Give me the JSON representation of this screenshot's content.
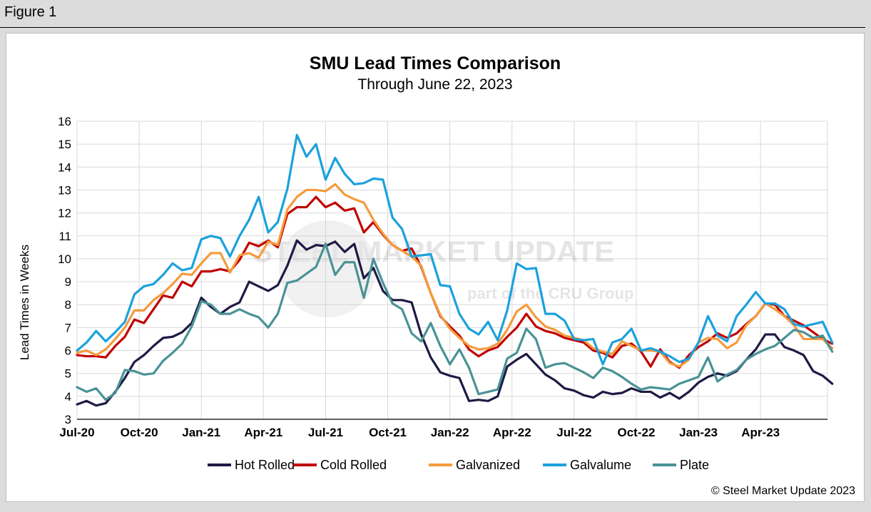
{
  "figure_label": "Figure 1",
  "watermark": {
    "main": "STEEL MARKET UPDATE",
    "sub": "part of the CRU Group"
  },
  "copyright": "© Steel Market Update 2023",
  "colors": {
    "hot_rolled": "#1e1a45",
    "cold_rolled": "#c00000",
    "galvanized": "#f59b3c",
    "galvalume": "#1ba1dc",
    "plate": "#4a9296",
    "grid": "#d9d9d9"
  },
  "chart_data": {
    "type": "line",
    "title": "SMU Lead Times Comparison",
    "subtitle": "Through June 22, 2023",
    "xlabel": "",
    "ylabel": "Lead Times in Weeks",
    "ylim": [
      3,
      16
    ],
    "yticks": [
      3,
      4,
      5,
      6,
      7,
      8,
      9,
      10,
      11,
      12,
      13,
      14,
      15,
      16
    ],
    "x_domain": [
      0,
      78.5
    ],
    "x_ticks": [
      {
        "label": "Jul-20",
        "pos": 0
      },
      {
        "label": "Oct-20",
        "pos": 6.5
      },
      {
        "label": "Jan-21",
        "pos": 13
      },
      {
        "label": "Apr-21",
        "pos": 19.5
      },
      {
        "label": "Jul-21",
        "pos": 26
      },
      {
        "label": "Oct-21",
        "pos": 32.5
      },
      {
        "label": "Jan-22",
        "pos": 39
      },
      {
        "label": "Apr-22",
        "pos": 45.5
      },
      {
        "label": "Jul-22",
        "pos": 52
      },
      {
        "label": "Oct-22",
        "pos": 58.5
      },
      {
        "label": "Jan-23",
        "pos": 65
      },
      {
        "label": "Apr-23",
        "pos": 71.5
      }
    ],
    "grid": true,
    "legend_position": "bottom",
    "series": [
      {
        "key": "hot_rolled",
        "name": "Hot Rolled",
        "values": [
          3.65,
          3.8,
          3.6,
          3.7,
          4.2,
          4.8,
          5.5,
          5.8,
          6.2,
          6.55,
          6.6,
          6.8,
          7.2,
          8.3,
          7.9,
          7.6,
          7.9,
          8.1,
          9.0,
          8.8,
          8.6,
          8.85,
          9.7,
          10.8,
          10.4,
          10.6,
          10.55,
          10.75,
          10.3,
          10.65,
          9.15,
          9.6,
          8.6,
          8.2,
          8.2,
          8.1,
          6.7,
          5.7,
          5.05,
          4.9,
          4.8,
          3.8,
          3.85,
          3.8,
          4.0,
          5.3,
          5.6,
          5.85,
          5.4,
          4.95,
          4.7,
          4.35,
          4.25,
          4.05,
          3.95,
          4.2,
          4.1,
          4.15,
          4.35,
          4.2,
          4.2,
          3.95,
          4.15,
          3.9,
          4.2,
          4.6,
          4.85,
          5.0,
          4.9,
          5.1,
          5.6,
          6.05,
          6.7,
          6.7,
          6.15,
          6.0,
          5.8,
          5.1,
          4.9,
          4.55
        ]
      },
      {
        "key": "cold_rolled",
        "name": "Cold Rolled",
        "values": [
          5.8,
          5.75,
          5.75,
          5.7,
          6.2,
          6.6,
          7.35,
          7.2,
          7.8,
          8.4,
          8.3,
          9.0,
          8.8,
          9.45,
          9.45,
          9.55,
          9.45,
          9.95,
          10.7,
          10.55,
          10.8,
          10.5,
          11.95,
          12.25,
          12.25,
          12.7,
          12.25,
          12.45,
          12.1,
          12.2,
          11.15,
          11.6,
          11.05,
          10.6,
          10.35,
          10.45,
          9.65,
          8.5,
          7.5,
          7.05,
          6.65,
          6.05,
          5.75,
          6.0,
          6.15,
          6.6,
          7.0,
          7.6,
          7.05,
          6.85,
          6.75,
          6.55,
          6.45,
          6.35,
          6.0,
          5.9,
          5.7,
          6.2,
          6.3,
          5.95,
          5.3,
          6.05,
          5.5,
          5.25,
          5.8,
          6.15,
          6.4,
          6.75,
          6.55,
          6.75,
          7.15,
          7.5,
          8.05,
          8.0,
          7.5,
          7.3,
          7.1,
          6.8,
          6.5,
          6.3
        ]
      },
      {
        "key": "galvanized",
        "name": "Galvanized",
        "values": [
          5.9,
          6.0,
          5.8,
          6.05,
          6.5,
          7.0,
          7.75,
          7.75,
          8.2,
          8.5,
          8.9,
          9.35,
          9.3,
          9.8,
          10.25,
          10.25,
          9.4,
          10.15,
          10.25,
          10.05,
          10.75,
          10.6,
          12.15,
          12.7,
          13.0,
          13.0,
          12.95,
          13.25,
          12.8,
          12.6,
          12.45,
          11.7,
          11.1,
          10.6,
          10.35,
          10.1,
          9.7,
          8.5,
          7.55,
          6.95,
          6.55,
          6.2,
          6.05,
          6.1,
          6.3,
          6.9,
          7.7,
          8.0,
          7.45,
          7.05,
          6.9,
          6.65,
          6.55,
          6.45,
          6.1,
          5.95,
          5.85,
          6.4,
          6.2,
          6.0,
          6.0,
          5.95,
          5.45,
          5.3,
          5.6,
          6.35,
          6.55,
          6.5,
          6.1,
          6.35,
          7.1,
          7.5,
          8.05,
          7.8,
          7.5,
          7.1,
          6.5,
          6.5,
          6.5,
          6.1
        ]
      },
      {
        "key": "galvalume",
        "name": "Galvalume",
        "values": [
          6.0,
          6.35,
          6.85,
          6.4,
          6.8,
          7.25,
          8.45,
          8.8,
          8.9,
          9.3,
          9.8,
          9.5,
          9.6,
          10.85,
          11.0,
          10.9,
          10.1,
          11.0,
          11.7,
          12.7,
          11.15,
          11.6,
          13.05,
          15.4,
          14.45,
          15.0,
          13.45,
          14.4,
          13.7,
          13.25,
          13.3,
          13.5,
          13.45,
          11.8,
          11.3,
          10.1,
          10.15,
          10.2,
          8.85,
          8.8,
          7.6,
          6.95,
          6.7,
          7.25,
          6.45,
          7.75,
          9.8,
          9.55,
          9.6,
          7.6,
          7.6,
          7.3,
          6.5,
          6.45,
          6.5,
          5.4,
          6.35,
          6.5,
          6.95,
          6.0,
          6.1,
          5.95,
          5.75,
          5.5,
          5.65,
          6.35,
          7.5,
          6.65,
          6.4,
          7.5,
          8.0,
          8.55,
          8.05,
          8.05,
          7.8,
          7.15,
          7.05,
          7.15,
          7.25,
          6.35
        ]
      },
      {
        "key": "plate",
        "name": "Plate",
        "values": [
          4.4,
          4.2,
          4.35,
          3.85,
          4.15,
          5.15,
          5.1,
          4.95,
          5.0,
          5.55,
          5.9,
          6.3,
          7.05,
          8.15,
          8.0,
          7.6,
          7.6,
          7.8,
          7.6,
          7.45,
          7.0,
          7.6,
          8.95,
          9.05,
          9.35,
          9.65,
          10.65,
          9.3,
          9.85,
          9.85,
          8.3,
          10.0,
          8.95,
          8.05,
          7.8,
          6.75,
          6.4,
          7.2,
          6.2,
          5.4,
          6.05,
          5.25,
          4.1,
          4.2,
          4.3,
          5.65,
          5.9,
          6.95,
          6.5,
          5.25,
          5.4,
          5.45,
          5.25,
          5.05,
          4.8,
          5.25,
          5.1,
          4.85,
          4.55,
          4.3,
          4.4,
          4.35,
          4.3,
          4.55,
          4.7,
          4.85,
          5.7,
          4.65,
          4.95,
          5.15,
          5.6,
          5.85,
          6.05,
          6.2,
          6.55,
          6.9,
          6.8,
          6.55,
          6.65,
          5.95
        ]
      }
    ]
  }
}
